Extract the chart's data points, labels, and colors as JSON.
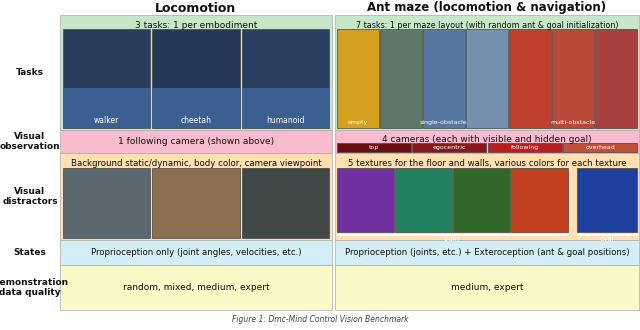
{
  "col1_title": "Locomotion",
  "col2_title": "Ant maze (locomotion & navigation)",
  "rows": [
    "Tasks",
    "Visual\nobservation",
    "Visual\ndistractors",
    "States",
    "Demonstration\ndata quality"
  ],
  "green_light": "#c8e6c9",
  "pink_light": "#f8bbd0",
  "orange_light": "#ffe0b2",
  "cyan_light": "#d4eef5",
  "yellow_light": "#fafac8",
  "text_dark": "#111111",
  "col1_task_text": "3 tasks: 1 per embodiment",
  "col1_task_labels": [
    "walker",
    "cheetah",
    "humanoid"
  ],
  "col1_obs_text": "1 following camera (shown above)",
  "col1_dist_text": "Background static/dynamic, body color, camera viewpoint",
  "col1_states_text": "Proprioception only (joint angles, velocities, etc.)",
  "col1_demo_text": "random, mixed, medium, expert",
  "col2_task_text": "7 tasks: 1 per maze layout (with random ant & goal initialization)",
  "col2_task_labels": [
    "empty",
    "single-obstacle",
    "multi-obstacle"
  ],
  "col2_obs_text": "4 cameras (each with visible and hidden goal)",
  "col2_obs_labels": [
    "top",
    "egocentric",
    "following",
    "overhead"
  ],
  "col2_dist_text": "5 textures for the floor and walls, various colors for each texture",
  "col2_states_text": "Proprioception (joints, etc.) + Exteroception (ant & goal positions)",
  "col2_demo_text": "medium, expert",
  "caption": "Figure 1: Dmc-Mind Control Vision Benchmark",
  "loco_img_colors": [
    "#2a3d5a",
    "#253858",
    "#2a4060"
  ],
  "loco_img_floor": "#3a5f90",
  "loco_dist_colors": [
    "#5c6870",
    "#8a7050",
    "#404848"
  ],
  "maze_colors_7": [
    "#d4a020",
    "#607868",
    "#5878a0",
    "#7890b0",
    "#c04030",
    "#b84838",
    "#a84040"
  ],
  "cam_colors_4": [
    "#6a1010",
    "#8a1818",
    "#b82020",
    "#c05038"
  ],
  "tex_colors_train": [
    "#7030a0",
    "#208060",
    "#306828",
    "#c04020"
  ],
  "tex_color_eval": [
    "#2040a0"
  ]
}
